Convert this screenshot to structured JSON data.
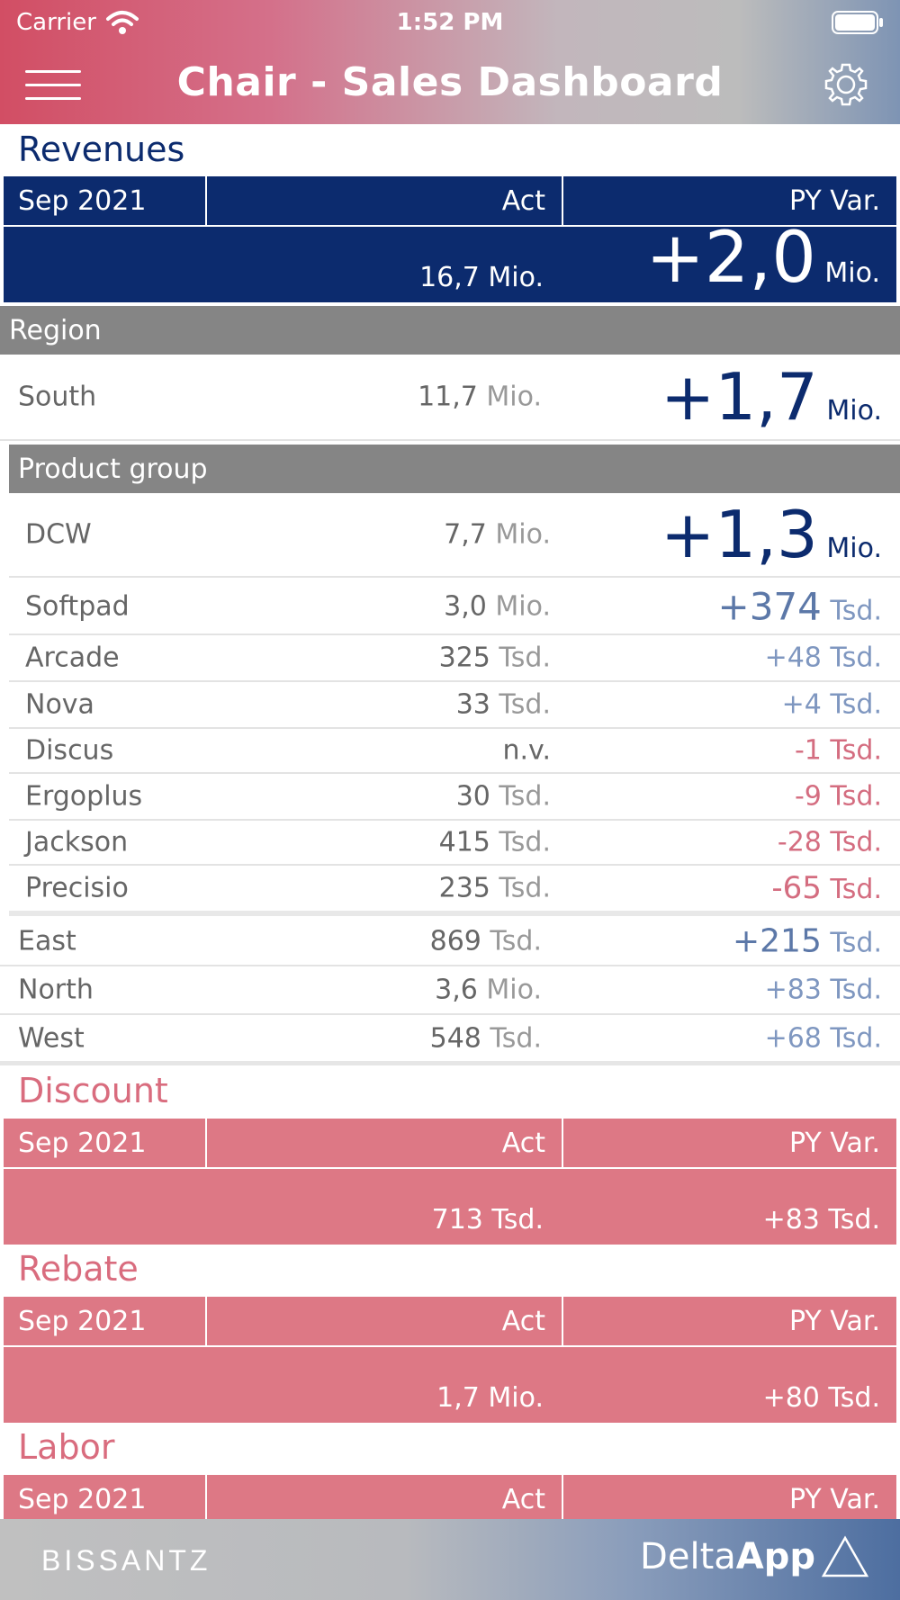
{
  "status_bar": {
    "carrier": "Carrier",
    "time": "1:52 PM"
  },
  "header": {
    "title": "Chair - Sales Dashboard",
    "menu_icon": "hamburger-icon",
    "settings_icon": "gear-icon"
  },
  "revenues": {
    "title": "Revenues",
    "col_period": "Sep 2021",
    "col_act": "Act",
    "col_var": "PY Var.",
    "act_value": "16,7",
    "act_unit": "Mio.",
    "var_value": "+2,0",
    "var_unit": "Mio.",
    "region_label": "Region",
    "south": {
      "label": "South",
      "act": "11,7",
      "act_unit": "Mio.",
      "var": "+1,7",
      "var_unit": "Mio."
    },
    "product_group_label": "Product group",
    "products": [
      {
        "label": "DCW",
        "act": "7,7",
        "act_unit": "Mio.",
        "var": "+1,3",
        "var_unit": "Mio."
      },
      {
        "label": "Softpad",
        "act": "3,0",
        "act_unit": "Mio.",
        "var": "+374",
        "var_unit": "Tsd."
      },
      {
        "label": "Arcade",
        "act": "325",
        "act_unit": "Tsd.",
        "var": "+48",
        "var_unit": "Tsd."
      },
      {
        "label": "Nova",
        "act": "33",
        "act_unit": "Tsd.",
        "var": "+4",
        "var_unit": "Tsd."
      },
      {
        "label": "Discus",
        "act": "n.v.",
        "act_unit": "",
        "var": "-1",
        "var_unit": "Tsd."
      },
      {
        "label": "Ergoplus",
        "act": "30",
        "act_unit": "Tsd.",
        "var": "-9",
        "var_unit": "Tsd."
      },
      {
        "label": "Jackson",
        "act": "415",
        "act_unit": "Tsd.",
        "var": "-28",
        "var_unit": "Tsd."
      },
      {
        "label": "Precisio",
        "act": "235",
        "act_unit": "Tsd.",
        "var": "-65",
        "var_unit": "Tsd."
      }
    ],
    "regions": [
      {
        "label": "East",
        "act": "869",
        "act_unit": "Tsd.",
        "var": "+215",
        "var_unit": "Tsd."
      },
      {
        "label": "North",
        "act": "3,6",
        "act_unit": "Mio.",
        "var": "+83",
        "var_unit": "Tsd."
      },
      {
        "label": "West",
        "act": "548",
        "act_unit": "Tsd.",
        "var": "+68",
        "var_unit": "Tsd."
      }
    ]
  },
  "discount": {
    "title": "Discount",
    "col_period": "Sep 2021",
    "col_act": "Act",
    "col_var": "PY Var.",
    "act_value": "713",
    "act_unit": "Tsd.",
    "var_value": "+83",
    "var_unit": "Tsd."
  },
  "rebate": {
    "title": "Rebate",
    "col_period": "Sep 2021",
    "col_act": "Act",
    "col_var": "PY Var.",
    "act_value": "1,7",
    "act_unit": "Mio.",
    "var_value": "+80",
    "var_unit": "Tsd."
  },
  "labor": {
    "title": "Labor",
    "col_period": "Sep 2021",
    "col_act": "Act",
    "col_var": "PY Var."
  },
  "footer": {
    "brand": "BISSANTZ",
    "app_prefix": "Delta",
    "app_suffix": "App"
  },
  "colors": {
    "navy": "#0c2b6e",
    "rose": "#dd7885",
    "group_grey": "#858585",
    "negative": "#d46d80"
  }
}
